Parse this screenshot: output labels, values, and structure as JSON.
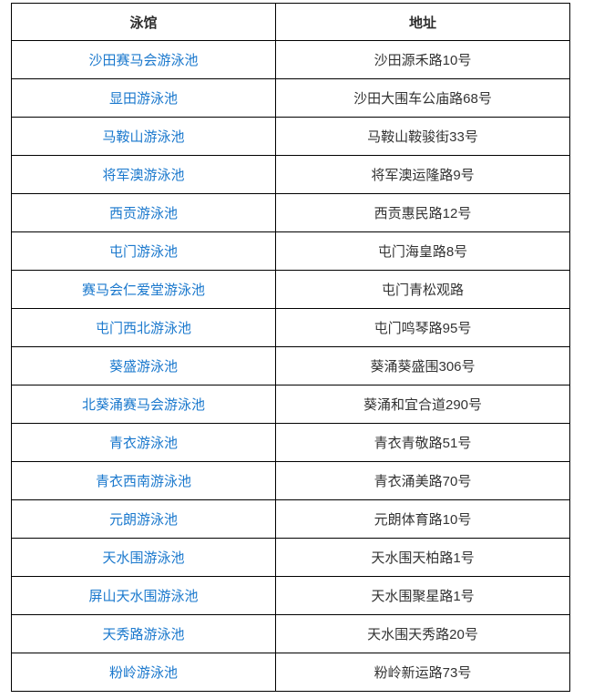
{
  "table": {
    "headers": [
      {
        "label": "泳馆"
      },
      {
        "label": "地址"
      }
    ],
    "rows": [
      {
        "pool": "沙田赛马会游泳池",
        "address": "沙田源禾路10号"
      },
      {
        "pool": "显田游泳池",
        "address": "沙田大围车公庙路68号"
      },
      {
        "pool": "马鞍山游泳池",
        "address": "马鞍山鞍骏街33号"
      },
      {
        "pool": "将军澳游泳池",
        "address": "将军澳运隆路9号"
      },
      {
        "pool": "西贡游泳池",
        "address": "西贡惠民路12号"
      },
      {
        "pool": "屯门游泳池",
        "address": "屯门海皇路8号"
      },
      {
        "pool": "赛马会仁爱堂游泳池",
        "address": "屯门青松观路"
      },
      {
        "pool": "屯门西北游泳池",
        "address": "屯门鸣琴路95号"
      },
      {
        "pool": "葵盛游泳池",
        "address": "葵涌葵盛围306号"
      },
      {
        "pool": "北葵涌赛马会游泳池",
        "address": "葵涌和宜合道290号"
      },
      {
        "pool": "青衣游泳池",
        "address": "青衣青敬路51号"
      },
      {
        "pool": "青衣西南游泳池",
        "address": "青衣涌美路70号"
      },
      {
        "pool": "元朗游泳池",
        "address": "元朗体育路10号"
      },
      {
        "pool": "天水围游泳池",
        "address": "天水围天柏路1号"
      },
      {
        "pool": "屏山天水围游泳池",
        "address": "天水围聚星路1号"
      },
      {
        "pool": "天秀路游泳池",
        "address": "天水围天秀路20号"
      },
      {
        "pool": "粉岭游泳池",
        "address": "粉岭新运路73号"
      }
    ]
  },
  "colors": {
    "link": "#1a78cd",
    "border": "#000000",
    "body_text": "#333333",
    "header_text": "#2e2e2e"
  }
}
